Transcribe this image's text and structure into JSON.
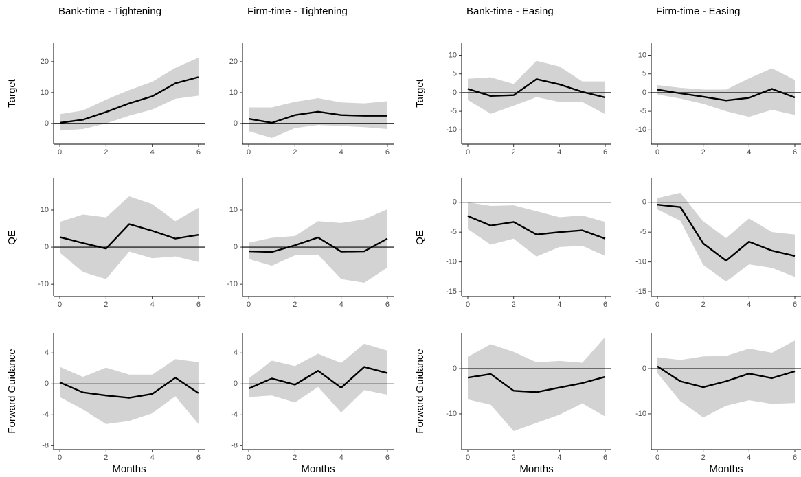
{
  "chart_data": [
    {
      "type": "line",
      "title": "Bank-time - Tightening",
      "ylabel": "Target",
      "x": [
        0,
        1,
        2,
        3,
        4,
        5,
        6
      ],
      "xlim": [
        -0.27,
        6.27
      ],
      "xticks": [
        0,
        2,
        4,
        6
      ],
      "ylim": [
        -6.7,
        26.2
      ],
      "yticks": [
        0,
        10,
        20
      ],
      "hline": 0,
      "series": [
        {
          "color": "#000000",
          "band_color": "#d3d3d3",
          "values": [
            0.2,
            1.2,
            3.7,
            6.5,
            8.8,
            13,
            15
          ],
          "lower": [
            -2.3,
            -1.8,
            0,
            2.5,
            4.5,
            8,
            9
          ],
          "upper": [
            3,
            4.2,
            7.7,
            10.8,
            13.5,
            18,
            21.3
          ]
        }
      ]
    },
    {
      "type": "line",
      "title": "Firm-time - Tightening",
      "x": [
        0,
        1,
        2,
        3,
        4,
        5,
        6
      ],
      "xlim": [
        -0.27,
        6.27
      ],
      "xticks": [
        0,
        2,
        4,
        6
      ],
      "ylim": [
        -6.7,
        26.2
      ],
      "yticks": [
        0,
        10,
        20
      ],
      "hline": 0,
      "series": [
        {
          "color": "#000000",
          "band_color": "#d3d3d3",
          "values": [
            1.5,
            0.2,
            2.7,
            3.8,
            2.7,
            2.5,
            2.5
          ],
          "lower": [
            -2.5,
            -4.7,
            -1.5,
            -0.5,
            -0.8,
            -1.2,
            -1.8
          ],
          "upper": [
            5.2,
            5.2,
            7,
            8.2,
            6.8,
            6.5,
            7.2
          ]
        }
      ]
    },
    {
      "type": "line",
      "title": "Bank-time - Easing",
      "ylabel": "Target",
      "x": [
        0,
        1,
        2,
        3,
        4,
        5,
        6
      ],
      "xlim": [
        -0.27,
        6.27
      ],
      "xticks": [
        0,
        2,
        4,
        6
      ],
      "ylim": [
        -13.8,
        13.4
      ],
      "yticks": [
        -10,
        -5,
        0,
        5,
        10
      ],
      "hline": 0,
      "series": [
        {
          "color": "#000000",
          "band_color": "#d3d3d3",
          "values": [
            1,
            -0.9,
            -0.7,
            3.6,
            2.2,
            0.2,
            -1.3
          ],
          "lower": [
            -2,
            -5.7,
            -3.5,
            -1.2,
            -2.5,
            -2.5,
            -5.8
          ],
          "upper": [
            3.7,
            4.1,
            2.3,
            8.5,
            7,
            3,
            3
          ]
        }
      ]
    },
    {
      "type": "line",
      "title": "Firm-time - Easing",
      "x": [
        0,
        1,
        2,
        3,
        4,
        5,
        6
      ],
      "xlim": [
        -0.27,
        6.27
      ],
      "xticks": [
        0,
        2,
        4,
        6
      ],
      "ylim": [
        -13.8,
        13.4
      ],
      "yticks": [
        -10,
        -5,
        0,
        5,
        10
      ],
      "hline": 0,
      "series": [
        {
          "color": "#000000",
          "band_color": "#d3d3d3",
          "values": [
            0.8,
            -0.2,
            -1.1,
            -2.1,
            -1.4,
            1,
            -1.3
          ],
          "lower": [
            -0.5,
            -1.6,
            -3,
            -5,
            -6.5,
            -4.6,
            -6
          ],
          "upper": [
            2,
            1.3,
            0.8,
            0.8,
            3.8,
            6.5,
            3.4
          ]
        }
      ]
    },
    {
      "type": "line",
      "ylabel": "QE",
      "x": [
        0,
        1,
        2,
        3,
        4,
        5,
        6
      ],
      "xlim": [
        -0.27,
        6.27
      ],
      "xticks": [
        0,
        2,
        4,
        6
      ],
      "ylim": [
        -13.3,
        18.5
      ],
      "yticks": [
        -10,
        0,
        10
      ],
      "hline": 0,
      "series": [
        {
          "color": "#000000",
          "band_color": "#d3d3d3",
          "values": [
            2.7,
            1.1,
            -0.4,
            6.2,
            4.4,
            2.3,
            3.3
          ],
          "lower": [
            -1.5,
            -6.7,
            -8.6,
            -1.2,
            -3,
            -2.5,
            -4
          ],
          "upper": [
            6.8,
            8.8,
            8,
            13.7,
            11.6,
            7,
            10.6
          ]
        }
      ]
    },
    {
      "type": "line",
      "x": [
        0,
        1,
        2,
        3,
        4,
        5,
        6
      ],
      "xlim": [
        -0.27,
        6.27
      ],
      "xticks": [
        0,
        2,
        4,
        6
      ],
      "ylim": [
        -13.3,
        18.5
      ],
      "yticks": [
        -10,
        0,
        10
      ],
      "hline": 0,
      "series": [
        {
          "color": "#000000",
          "band_color": "#d3d3d3",
          "values": [
            -1.1,
            -1.3,
            0.5,
            2.6,
            -1.2,
            -1.1,
            2.3
          ],
          "lower": [
            -3.2,
            -5,
            -2.2,
            -2,
            -8.6,
            -9.6,
            -5.5
          ],
          "upper": [
            1.2,
            2.5,
            3,
            7,
            6.5,
            7.5,
            10.2
          ]
        }
      ]
    },
    {
      "type": "line",
      "ylabel": "QE",
      "x": [
        0,
        1,
        2,
        3,
        4,
        5,
        6
      ],
      "xlim": [
        -0.27,
        6.27
      ],
      "xticks": [
        0,
        2,
        4,
        6
      ],
      "ylim": [
        -15.8,
        4
      ],
      "yticks": [
        -15,
        -10,
        -5,
        0
      ],
      "hline": 0,
      "series": [
        {
          "color": "#000000",
          "band_color": "#d3d3d3",
          "values": [
            -2.3,
            -3.9,
            -3.3,
            -5.4,
            -5,
            -4.7,
            -6.1
          ],
          "lower": [
            -4.5,
            -7.1,
            -6.1,
            -9.1,
            -7.5,
            -7.3,
            -9
          ],
          "upper": [
            0,
            -0.6,
            -0.5,
            -1.5,
            -2.5,
            -2.2,
            -3.3
          ]
        }
      ]
    },
    {
      "type": "line",
      "x": [
        0,
        1,
        2,
        3,
        4,
        5,
        6
      ],
      "xlim": [
        -0.27,
        6.27
      ],
      "xticks": [
        0,
        2,
        4,
        6
      ],
      "ylim": [
        -15.8,
        4
      ],
      "yticks": [
        -15,
        -10,
        -5,
        0
      ],
      "hline": 0,
      "series": [
        {
          "color": "#000000",
          "band_color": "#d3d3d3",
          "values": [
            -0.4,
            -0.8,
            -6.9,
            -9.8,
            -6.6,
            -8.1,
            -9
          ],
          "lower": [
            -1.2,
            -3.1,
            -10.5,
            -13.3,
            -10.4,
            -11,
            -12.5
          ],
          "upper": [
            0.7,
            1.6,
            -3.2,
            -6,
            -2.7,
            -5,
            -5.4
          ]
        }
      ]
    },
    {
      "type": "line",
      "ylabel": "Forward Guidance",
      "xlabel": "Months",
      "x": [
        0,
        1,
        2,
        3,
        4,
        5,
        6
      ],
      "xlim": [
        -0.27,
        6.27
      ],
      "xticks": [
        0,
        2,
        4,
        6
      ],
      "ylim": [
        -8.5,
        6.6
      ],
      "yticks": [
        -8,
        -4,
        0,
        4
      ],
      "hline": 0,
      "series": [
        {
          "color": "#000000",
          "band_color": "#d3d3d3",
          "values": [
            0.2,
            -1.1,
            -1.5,
            -1.8,
            -1.3,
            0.8,
            -1.2
          ],
          "lower": [
            -1.7,
            -3.3,
            -5.2,
            -4.8,
            -3.8,
            -1.6,
            -5.2
          ],
          "upper": [
            2.2,
            0.9,
            2.1,
            1.2,
            1.2,
            3.2,
            2.8
          ]
        }
      ]
    },
    {
      "type": "line",
      "xlabel": "Months",
      "x": [
        0,
        1,
        2,
        3,
        4,
        5,
        6
      ],
      "xlim": [
        -0.27,
        6.27
      ],
      "xticks": [
        0,
        2,
        4,
        6
      ],
      "ylim": [
        -8.5,
        6.6
      ],
      "yticks": [
        -8,
        -4,
        0,
        4
      ],
      "hline": 0,
      "series": [
        {
          "color": "#000000",
          "band_color": "#d3d3d3",
          "values": [
            -0.6,
            0.7,
            -0.1,
            1.7,
            -0.5,
            2.2,
            1.4
          ],
          "lower": [
            -1.7,
            -1.5,
            -2.4,
            -0.4,
            -3.7,
            -0.8,
            -1.4
          ],
          "upper": [
            0.7,
            3,
            2.3,
            3.9,
            2.7,
            5.2,
            4.3
          ]
        }
      ]
    },
    {
      "type": "line",
      "ylabel": "Forward Guidance",
      "xlabel": "Months",
      "x": [
        0,
        1,
        2,
        3,
        4,
        5,
        6
      ],
      "xlim": [
        -0.27,
        6.27
      ],
      "xticks": [
        0,
        2,
        4,
        6
      ],
      "ylim": [
        -17.9,
        7.9
      ],
      "yticks": [
        -10,
        0
      ],
      "hline": 0,
      "series": [
        {
          "color": "#000000",
          "band_color": "#d3d3d3",
          "values": [
            -2,
            -1.2,
            -4.9,
            -5.2,
            -4.2,
            -3.2,
            -1.8
          ],
          "lower": [
            -6.8,
            -8,
            -13.8,
            -12,
            -10.2,
            -7.7,
            -10.6
          ],
          "upper": [
            2.6,
            5.4,
            3.7,
            1.4,
            1.7,
            1.3,
            7
          ]
        }
      ]
    },
    {
      "type": "line",
      "xlabel": "Months",
      "x": [
        0,
        1,
        2,
        3,
        4,
        5,
        6
      ],
      "xlim": [
        -0.27,
        6.27
      ],
      "xticks": [
        0,
        2,
        4,
        6
      ],
      "ylim": [
        -17.9,
        7.9
      ],
      "yticks": [
        -10,
        0
      ],
      "hline": 0,
      "series": [
        {
          "color": "#000000",
          "band_color": "#d3d3d3",
          "values": [
            0.5,
            -2.8,
            -4.1,
            -2.8,
            -1.1,
            -2.1,
            -0.6
          ],
          "lower": [
            -1,
            -7.2,
            -10.8,
            -8.2,
            -7,
            -7.8,
            -7.6
          ],
          "upper": [
            2.5,
            1.9,
            2.7,
            2.8,
            4.4,
            3.5,
            6.2
          ]
        }
      ]
    }
  ]
}
